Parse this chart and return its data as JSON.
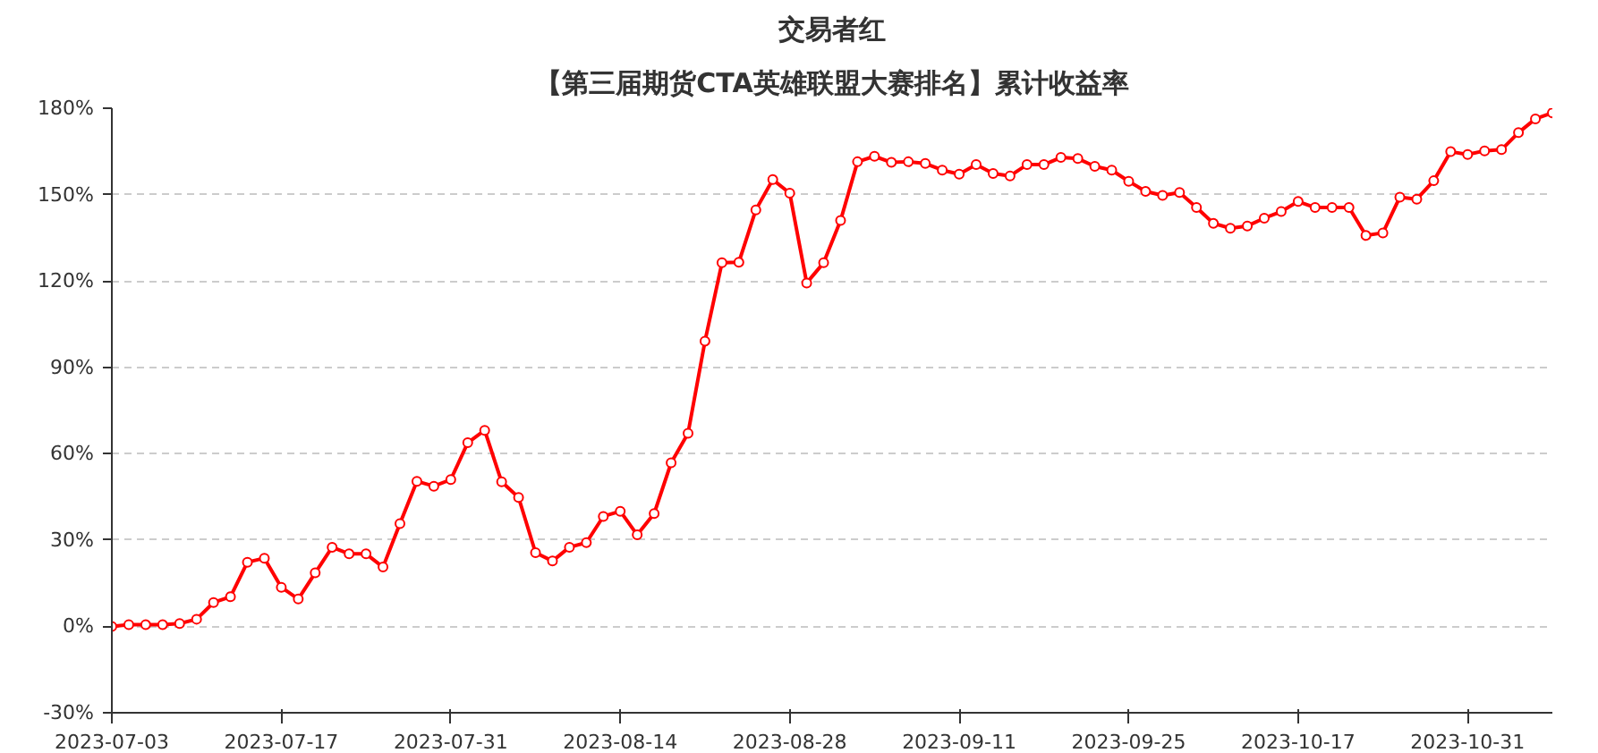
{
  "chart_data": {
    "type": "line",
    "title": "交易者红",
    "subtitle": "【第三届期货CTA英雄联盟大赛排名】累计收益率",
    "categories": [
      "2023-07-03",
      null,
      null,
      null,
      null,
      null,
      null,
      null,
      null,
      null,
      "2023-07-17",
      null,
      null,
      null,
      null,
      null,
      null,
      null,
      null,
      null,
      "2023-07-31",
      null,
      null,
      null,
      null,
      null,
      null,
      null,
      null,
      null,
      "2023-08-14",
      null,
      null,
      null,
      null,
      null,
      null,
      null,
      null,
      null,
      "2023-08-28",
      null,
      null,
      null,
      null,
      null,
      null,
      null,
      null,
      null,
      "2023-09-11",
      null,
      null,
      null,
      null,
      null,
      null,
      null,
      null,
      null,
      "2023-09-25",
      null,
      null,
      null,
      null,
      null,
      null,
      null,
      null,
      null,
      "2023-10-17",
      null,
      null,
      null,
      null,
      null,
      null,
      null,
      null,
      null,
      "2023-10-31",
      null,
      null,
      null,
      null,
      null
    ],
    "series": [
      {
        "color": "#ff0000",
        "values": [
          0,
          0.6,
          0.6,
          0.6,
          1.0,
          2.5,
          8.3,
          10.3,
          22.3,
          23.7,
          13.6,
          9.5,
          18.6,
          27.5,
          25.2,
          25.2,
          20.6,
          35.7,
          50.4,
          48.7,
          51.0,
          63.8,
          68.1,
          50.2,
          44.8,
          25.6,
          22.7,
          27.5,
          29.1,
          38.2,
          40.0,
          31.8,
          39.2,
          56.8,
          67.1,
          99.1,
          126.3,
          126.5,
          144.7,
          155.2,
          150.5,
          119.3,
          126.3,
          141.0,
          161.4,
          163.3,
          161.2,
          161.4,
          160.8,
          158.5,
          157.1,
          160.4,
          157.3,
          156.5,
          160.4,
          160.4,
          162.9,
          162.5,
          159.8,
          158.5,
          154.6,
          151.1,
          149.7,
          150.7,
          145.5,
          140.0,
          138.3,
          139.1,
          141.8,
          144.1,
          147.6,
          145.5,
          145.5,
          145.5,
          135.8,
          136.7,
          149.1,
          148.4,
          154.8,
          164.9,
          163.9,
          165.2,
          165.6,
          171.5,
          176.3,
          178.4
        ]
      }
    ],
    "ylim": [
      -30,
      180
    ],
    "yticks": [
      {
        "value": -30,
        "label": "-30%"
      },
      {
        "value": 0,
        "label": "0%"
      },
      {
        "value": 30,
        "label": "30%"
      },
      {
        "value": 60,
        "label": "60%"
      },
      {
        "value": 90,
        "label": "90%"
      },
      {
        "value": 120,
        "label": "120%"
      },
      {
        "value": 150,
        "label": "150%"
      },
      {
        "value": 180,
        "label": "180%"
      }
    ],
    "grid": "y",
    "marker": "circle",
    "line_style": "solid"
  }
}
